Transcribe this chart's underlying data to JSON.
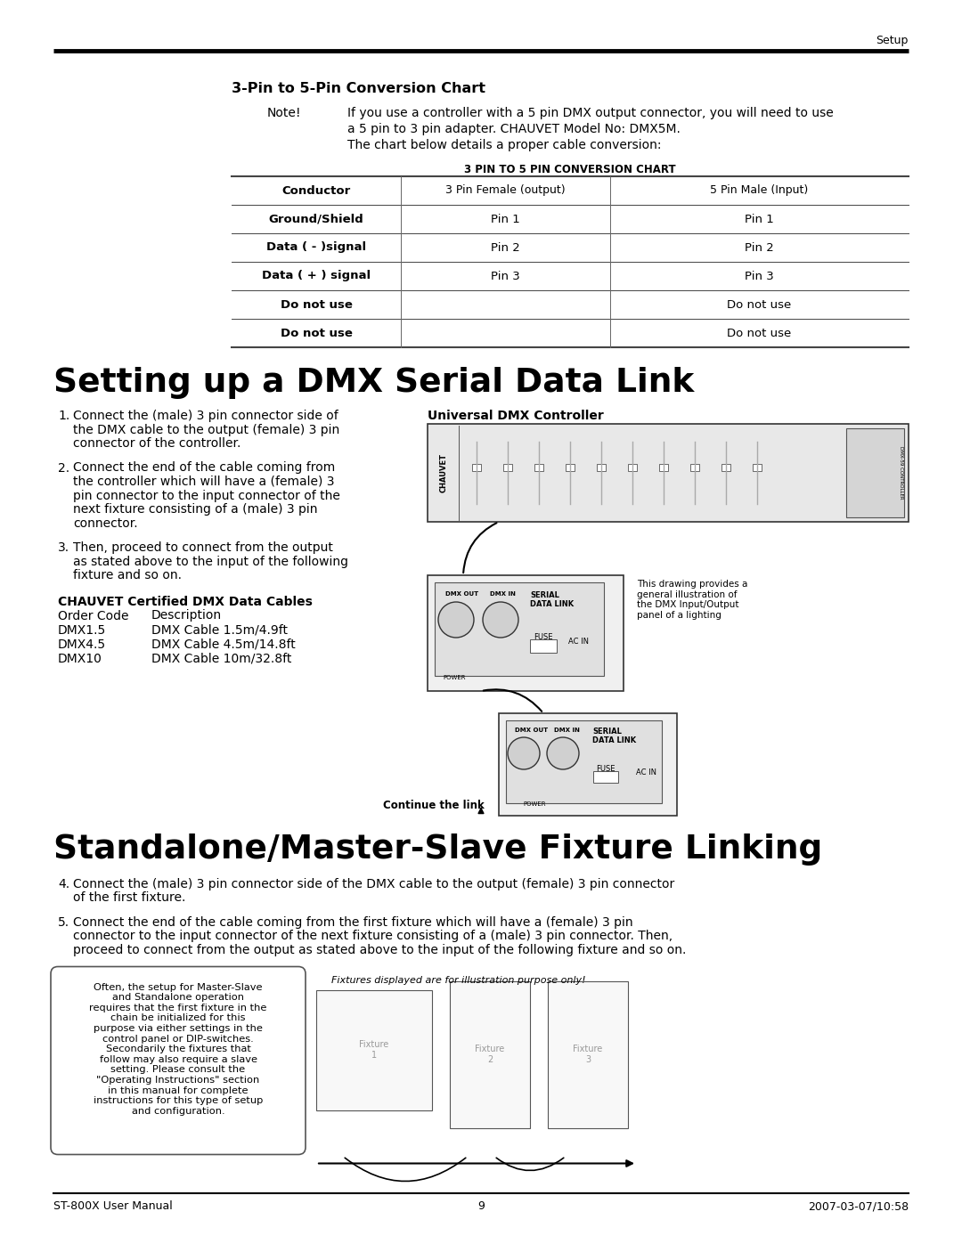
{
  "page_bg": "#ffffff",
  "header_text": "Setup",
  "footer_left": "ST-800X User Manual",
  "footer_center": "9",
  "footer_right": "2007-03-07/10:58",
  "section1_title": "3-Pin to 5-Pin Conversion Chart",
  "note_label": "Note!",
  "note_text1": "If you use a controller with a 5 pin DMX output connector, you will need to use",
  "note_text2": "a 5 pin to 3 pin adapter. CHAUVET Model No: DMX5M.",
  "note_text3": "The chart below details a proper cable conversion:",
  "table_title": "3 PIN TO 5 PIN CONVERSION CHART",
  "table_headers": [
    "Conductor",
    "3 Pin Female (output)",
    "5 Pin Male (Input)"
  ],
  "table_rows": [
    [
      "Ground/Shield",
      "Pin 1",
      "Pin 1"
    ],
    [
      "Data ( - )signal",
      "Pin 2",
      "Pin 2"
    ],
    [
      "Data ( + ) signal",
      "Pin 3",
      "Pin 3"
    ],
    [
      "Do not use",
      "",
      "Do not use"
    ],
    [
      "Do not use",
      "",
      "Do not use"
    ]
  ],
  "section2_title": "Setting up a DMX Serial Data Link",
  "dmx_controller_label": "Universal DMX Controller",
  "step1_num": "1.",
  "step1_lines": [
    "Connect the (male) 3 pin connector side of",
    "the DMX cable to the output (female) 3 pin",
    "connector of the controller."
  ],
  "step2_num": "2.",
  "step2_lines": [
    "Connect the end of the cable coming from",
    "the controller which will have a (female) 3",
    "pin connector to the input connector of the",
    "next fixture consisting of a (male) 3 pin",
    "connector."
  ],
  "step3_num": "3.",
  "step3_lines": [
    "Then, proceed to connect from the output",
    "as stated above to the input of the following",
    "fixture and so on."
  ],
  "cables_title": "CHAUVET Certified DMX Data Cables",
  "cables_col1": [
    "Order Code",
    "DMX1.5",
    "DMX4.5",
    "DMX10"
  ],
  "cables_col2": [
    "Description",
    "DMX Cable 1.5m/4.9ft",
    "DMX Cable 4.5m/14.8ft",
    "DMX Cable 10m/32.8ft"
  ],
  "drawing_note": "This drawing provides a\ngeneral illustration of\nthe DMX Input/Output\npanel of a lighting",
  "continue_link": "Continue the link",
  "section3_title": "Standalone/Master-Slave Fixture Linking",
  "step4_num": "4.",
  "step4_lines": [
    "Connect the (male) 3 pin connector side of the DMX cable to the output (female) 3 pin connector",
    "of the first fixture."
  ],
  "step5_num": "5.",
  "step5_lines": [
    "Connect the end of the cable coming from the first fixture which will have a (female) 3 pin",
    "connector to the input connector of the next fixture consisting of a (male) 3 pin connector. Then,",
    "proceed to connect from the output as stated above to the input of the following fixture and so on."
  ],
  "standalone_note": "Often, the setup for Master-Slave\nand Standalone operation\nrequires that the first fixture in the\nchain be initialized for this\npurpose via either settings in the\ncontrol panel or DIP-switches.\nSecondarily the fixtures that\nfollow may also require a slave\nsetting. Please consult the\n\"Operating Instructions\" section\nin this manual for complete\ninstructions for this type of setup\nand configuration.",
  "fixtures_note": "Fixtures displayed are for illustration purpose only!"
}
